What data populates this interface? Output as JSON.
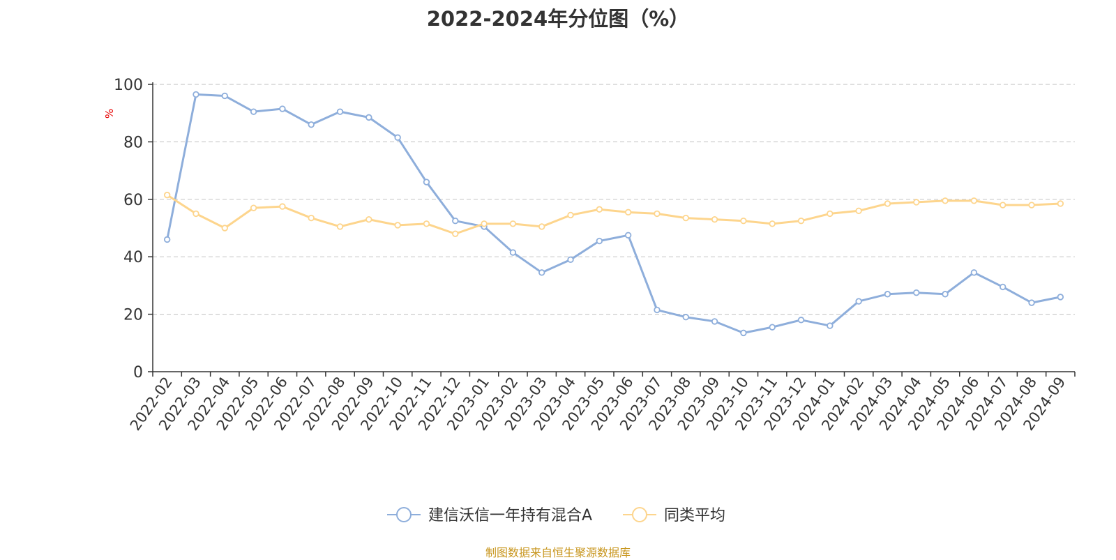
{
  "title": "2022-2024年分位图（%）",
  "source_note": "制图数据来自恒生聚源数据库",
  "chart_data": {
    "type": "line",
    "title": "2022-2024年分位图（%）",
    "ylabel": "%",
    "xlabel": "",
    "ylim": [
      0,
      100
    ],
    "yticks": [
      0,
      20,
      40,
      60,
      80,
      100
    ],
    "grid": true,
    "legend_position": "bottom-center",
    "x": [
      "2022-02",
      "2022-03",
      "2022-04",
      "2022-05",
      "2022-06",
      "2022-07",
      "2022-08",
      "2022-09",
      "2022-10",
      "2022-11",
      "2022-12",
      "2023-01",
      "2023-02",
      "2023-03",
      "2023-04",
      "2023-05",
      "2023-06",
      "2023-07",
      "2023-08",
      "2023-09",
      "2023-10",
      "2023-11",
      "2023-12",
      "2024-01",
      "2024-02",
      "2024-03",
      "2024-04",
      "2024-05",
      "2024-06",
      "2024-07",
      "2024-08",
      "2024-09"
    ],
    "series": [
      {
        "name": "建信沃信一年持有混合A",
        "color": "#8eaedb",
        "values": [
          46,
          96.5,
          96,
          90.5,
          91.5,
          86,
          90.5,
          88.5,
          81.5,
          66,
          52.5,
          50.5,
          41.5,
          34.5,
          39,
          45.5,
          47.5,
          21.5,
          19,
          17.5,
          13.5,
          15.5,
          18,
          16,
          24.5,
          27,
          27.5,
          27,
          34.5,
          29.5,
          24,
          26
        ]
      },
      {
        "name": "同类平均",
        "color": "#fdd58d",
        "values": [
          61.5,
          55,
          50,
          57,
          57.5,
          53.5,
          50.5,
          53,
          51,
          51.5,
          48,
          51.5,
          51.5,
          50.5,
          54.5,
          56.5,
          55.5,
          55,
          53.5,
          53,
          52.5,
          51.5,
          52.5,
          55,
          56,
          58.5,
          59,
          59.5,
          59.5,
          58,
          58,
          58.5
        ]
      }
    ]
  }
}
